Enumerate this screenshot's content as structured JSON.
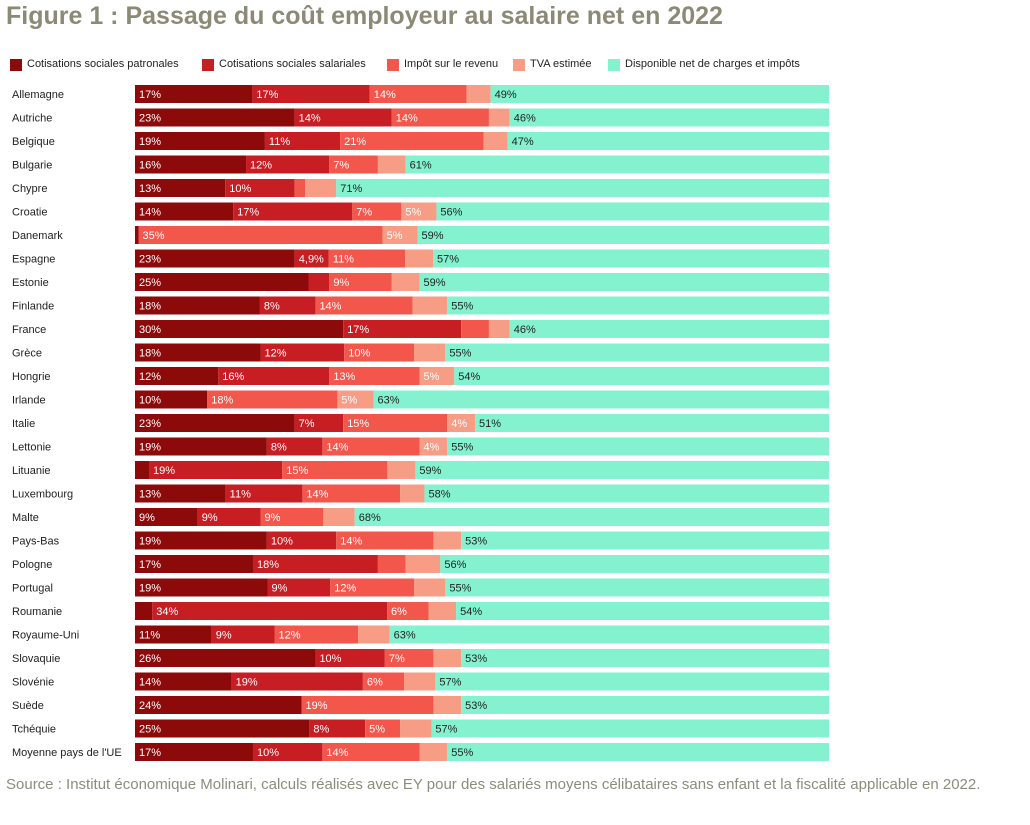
{
  "title": "Figure 1 : Passage du coût employeur au salaire net en 2022",
  "source": "Source : Institut économique Molinari, calculs réalisés avec EY pour des salariés moyens célibataires sans enfant et la fiscalité applicable en 2022.",
  "colors": {
    "Cotisations sociales patronales": "#8c0a0a",
    "Cotisations sociales salariales": "#c71e24",
    "Impôt sur le revenu": "#f3574c",
    "TVA estimée": "#f79c85",
    "Disponible net de charges et impôts": "#84f2cf"
  },
  "chart_data": {
    "type": "bar",
    "orientation": "horizontal",
    "stacked": true,
    "categories": [
      "Allemagne",
      "Autriche",
      "Belgique",
      "Bulgarie",
      "Chypre",
      "Croatie",
      "Danemark",
      "Espagne",
      "Estonie",
      "Finlande",
      "France",
      "Grèce",
      "Hongrie",
      "Irlande",
      "Italie",
      "Lettonie",
      "Lituanie",
      "Luxembourg",
      "Malte",
      "Pays-Bas",
      "Pologne",
      "Portugal",
      "Roumanie",
      "Royaume-Uni",
      "Slovaquie",
      "Slovénie",
      "Suède",
      "Tchéquie",
      "Moyenne pays de l'UE"
    ],
    "series": [
      {
        "name": "Cotisations sociales patronales",
        "values": [
          17,
          23,
          19,
          16,
          13,
          14,
          0.5,
          23,
          25,
          18,
          30,
          18,
          12,
          10,
          23,
          19,
          2,
          13,
          9,
          19,
          17,
          19,
          2.5,
          11,
          26,
          14,
          24,
          25,
          17
        ],
        "labels": [
          "17%",
          "23%",
          "19%",
          "16%",
          "13%",
          "14%",
          "",
          "23%",
          "25%",
          "18%",
          "30%",
          "18%",
          "12%",
          "10%",
          "23%",
          "19%",
          "",
          "13%",
          "9%",
          "19%",
          "17%",
          "19%",
          "",
          "11%",
          "26%",
          "14%",
          "24%",
          "25%",
          "17%"
        ]
      },
      {
        "name": "Cotisations sociales salariales",
        "values": [
          17,
          14,
          11,
          12,
          10,
          17,
          0,
          4.9,
          3,
          8,
          17,
          12,
          16,
          0,
          7,
          8,
          19,
          11,
          9,
          10,
          18,
          9,
          34,
          9,
          10,
          19,
          0,
          8,
          10
        ],
        "labels": [
          "17%",
          "14%",
          "11%",
          "12%",
          "10%",
          "17%",
          "",
          "4,9%",
          "",
          "8%",
          "17%",
          "12%",
          "16%",
          "",
          "7%",
          "8%",
          "19%",
          "11%",
          "9%",
          "10%",
          "18%",
          "9%",
          "34%",
          "9%",
          "10%",
          "19%",
          "",
          "8%",
          "10%"
        ]
      },
      {
        "name": "Impôt sur le revenu",
        "values": [
          14,
          14,
          21,
          7,
          1.5,
          7,
          35,
          11,
          9,
          14,
          4,
          10,
          13,
          18,
          15,
          14,
          15,
          14,
          9,
          14,
          4,
          12,
          6,
          12,
          7,
          6,
          19,
          5,
          14
        ],
        "labels": [
          "14%",
          "14%",
          "21%",
          "7%",
          "",
          "7%",
          "35%",
          "11%",
          "9%",
          "14%",
          "",
          "10%",
          "13%",
          "18%",
          "15%",
          "14%",
          "15%",
          "14%",
          "9%",
          "14%",
          "",
          "12%",
          "6%",
          "12%",
          "7%",
          "6%",
          "19%",
          "5%",
          "14%"
        ]
      },
      {
        "name": "TVA estimée",
        "values": [
          3.5,
          3,
          3.5,
          4,
          4.5,
          5,
          5,
          4,
          4,
          5,
          3,
          4.5,
          5,
          5,
          4,
          4,
          4,
          3.5,
          4.5,
          4,
          5,
          4.5,
          4,
          4.5,
          4,
          4.5,
          4,
          4.5,
          4
        ],
        "labels": [
          "",
          "",
          "",
          "",
          "",
          "5%",
          "5%",
          "",
          "",
          "",
          "",
          "",
          "5%",
          "5%",
          "4%",
          "4%",
          "",
          "",
          "",
          "",
          "",
          "",
          "",
          "",
          "",
          "",
          "",
          "",
          ""
        ]
      },
      {
        "name": "Disponible net de charges et impôts",
        "values": [
          49,
          46,
          47,
          61,
          71,
          56,
          59,
          57,
          59,
          55,
          46,
          55,
          54,
          63,
          51,
          55,
          59,
          58,
          68,
          53,
          56,
          55,
          54,
          63,
          53,
          57,
          53,
          57,
          55
        ],
        "labels": [
          "49%",
          "46%",
          "47%",
          "61%",
          "71%",
          "56%",
          "59%",
          "57%",
          "59%",
          "55%",
          "46%",
          "55%",
          "54%",
          "63%",
          "51%",
          "55%",
          "59%",
          "58%",
          "68%",
          "53%",
          "56%",
          "55%",
          "54%",
          "63%",
          "53%",
          "57%",
          "53%",
          "57%",
          "55%"
        ]
      }
    ],
    "legend_position": "top",
    "grid": false
  }
}
